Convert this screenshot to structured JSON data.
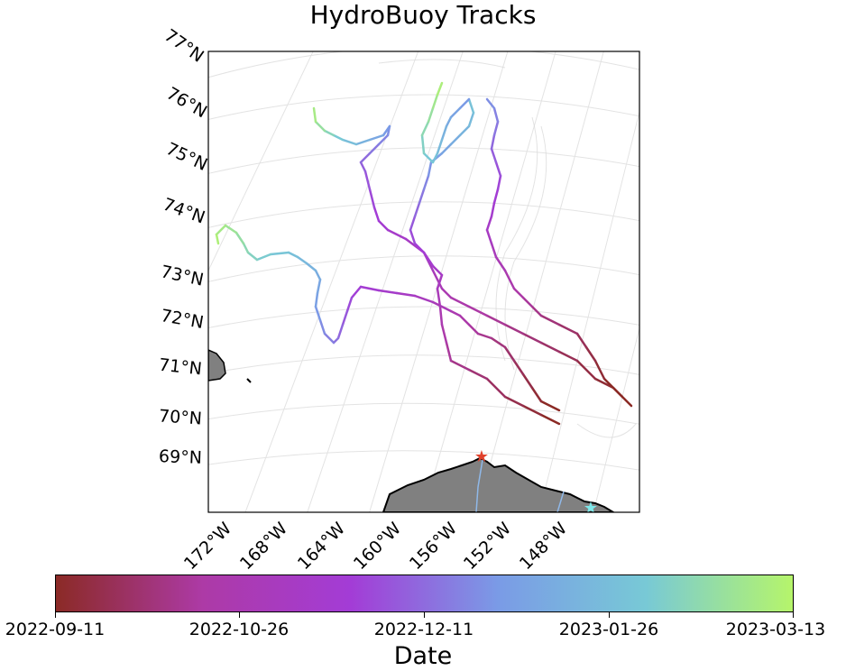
{
  "title": "HydroBuoy Tracks",
  "map": {
    "projection": "polar stereographic",
    "lat_labels": [
      "77°N",
      "76°N",
      "75°N",
      "74°N",
      "73°N",
      "72°N",
      "71°N",
      "70°N",
      "69°N"
    ],
    "lon_labels": [
      "172°W",
      "168°W",
      "164°W",
      "160°W",
      "156°W",
      "152°W",
      "148°W"
    ],
    "land_color": "#808080",
    "coastline_color": "#000000",
    "graticule_color": "#e0e0e0",
    "markers": [
      {
        "name": "red-star",
        "color": "#e0412b"
      },
      {
        "name": "cyan-star",
        "color": "#7ee8ea"
      }
    ]
  },
  "colorbar": {
    "title": "Date",
    "tick_labels": [
      "2022-09-11",
      "2022-10-26",
      "2022-12-11",
      "2023-01-26",
      "2023-03-13"
    ],
    "colors": [
      "#8b2a25",
      "#ad3aa6",
      "#a33cd6",
      "#7a9be6",
      "#78c9d6",
      "#b6f56a"
    ]
  }
}
